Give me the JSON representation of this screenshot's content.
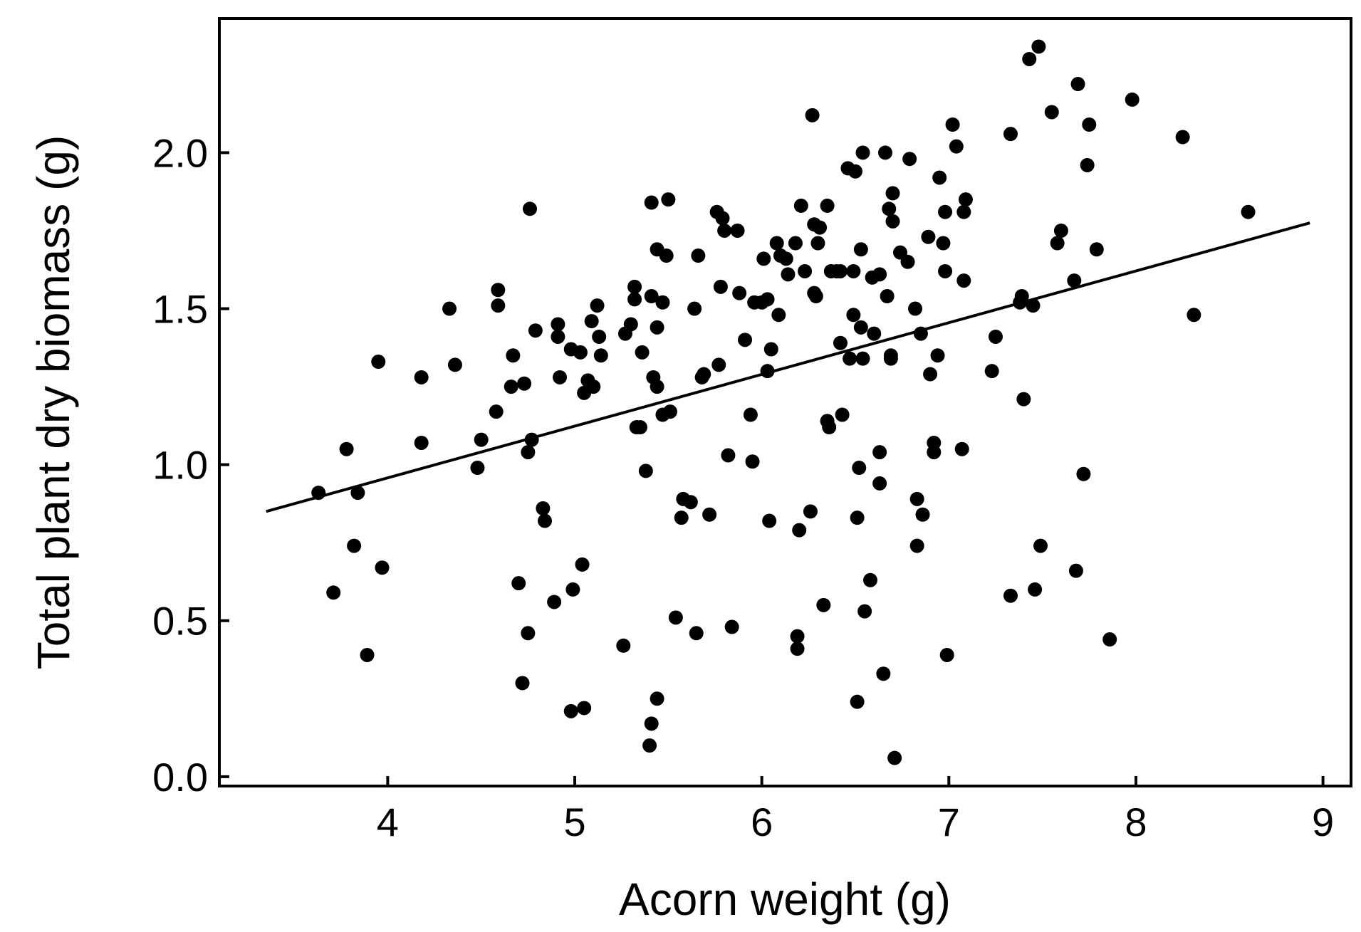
{
  "chart_data": {
    "type": "scatter",
    "title": "",
    "xlabel": "Acorn weight (g)",
    "ylabel": "Total plant dry biomass (g)",
    "xlim": [
      3.1,
      9.15
    ],
    "ylim": [
      -0.03,
      2.43
    ],
    "x_ticks": [
      4,
      5,
      6,
      7,
      8,
      9
    ],
    "x_tick_labels": [
      "4",
      "5",
      "6",
      "7",
      "8",
      "9"
    ],
    "y_ticks": [
      0.0,
      0.5,
      1.0,
      1.5,
      2.0
    ],
    "y_tick_labels": [
      "0.0",
      "0.5",
      "1.0",
      "1.5",
      "2.0"
    ],
    "grid": false,
    "legend": "none",
    "marker_color": "#000000",
    "points": [
      [
        3.63,
        0.91
      ],
      [
        3.71,
        0.59
      ],
      [
        3.78,
        1.05
      ],
      [
        3.82,
        0.74
      ],
      [
        3.84,
        0.91
      ],
      [
        3.89,
        0.39
      ],
      [
        3.95,
        1.33
      ],
      [
        3.97,
        0.67
      ],
      [
        4.18,
        1.28
      ],
      [
        4.18,
        1.07
      ],
      [
        4.33,
        1.5
      ],
      [
        4.36,
        1.32
      ],
      [
        4.48,
        0.99
      ],
      [
        4.5,
        1.08
      ],
      [
        4.58,
        1.17
      ],
      [
        4.59,
        1.51
      ],
      [
        4.59,
        1.56
      ],
      [
        4.66,
        1.25
      ],
      [
        4.67,
        1.35
      ],
      [
        4.7,
        0.62
      ],
      [
        4.72,
        0.3
      ],
      [
        4.73,
        1.26
      ],
      [
        4.75,
        1.04
      ],
      [
        4.75,
        0.46
      ],
      [
        4.76,
        1.82
      ],
      [
        4.77,
        1.08
      ],
      [
        4.79,
        1.43
      ],
      [
        4.83,
        0.86
      ],
      [
        4.84,
        0.82
      ],
      [
        4.89,
        0.56
      ],
      [
        4.91,
        1.41
      ],
      [
        4.91,
        1.45
      ],
      [
        4.92,
        1.28
      ],
      [
        4.98,
        1.37
      ],
      [
        4.98,
        0.21
      ],
      [
        4.99,
        0.6
      ],
      [
        5.03,
        1.36
      ],
      [
        5.04,
        0.68
      ],
      [
        5.05,
        1.23
      ],
      [
        5.05,
        0.22
      ],
      [
        5.07,
        1.27
      ],
      [
        5.09,
        1.46
      ],
      [
        5.1,
        1.25
      ],
      [
        5.12,
        1.51
      ],
      [
        5.13,
        1.41
      ],
      [
        5.14,
        1.35
      ],
      [
        5.27,
        1.42
      ],
      [
        5.26,
        0.42
      ],
      [
        5.3,
        1.45
      ],
      [
        5.32,
        1.53
      ],
      [
        5.32,
        1.57
      ],
      [
        5.33,
        1.12
      ],
      [
        5.35,
        1.12
      ],
      [
        5.36,
        1.36
      ],
      [
        5.38,
        0.98
      ],
      [
        5.41,
        1.84
      ],
      [
        5.41,
        1.54
      ],
      [
        5.41,
        0.17
      ],
      [
        5.4,
        0.1
      ],
      [
        5.42,
        1.28
      ],
      [
        5.44,
        1.69
      ],
      [
        5.44,
        1.44
      ],
      [
        5.44,
        1.25
      ],
      [
        5.44,
        0.25
      ],
      [
        5.47,
        1.16
      ],
      [
        5.47,
        1.52
      ],
      [
        5.49,
        1.67
      ],
      [
        5.5,
        1.85
      ],
      [
        5.51,
        1.17
      ],
      [
        5.54,
        0.51
      ],
      [
        5.57,
        0.83
      ],
      [
        5.58,
        0.89
      ],
      [
        5.62,
        0.88
      ],
      [
        5.64,
        1.5
      ],
      [
        5.65,
        0.46
      ],
      [
        5.66,
        1.67
      ],
      [
        5.68,
        1.28
      ],
      [
        5.69,
        1.29
      ],
      [
        5.72,
        0.84
      ],
      [
        5.76,
        1.81
      ],
      [
        5.77,
        1.32
      ],
      [
        5.78,
        1.57
      ],
      [
        5.79,
        1.79
      ],
      [
        5.8,
        1.75
      ],
      [
        5.82,
        1.03
      ],
      [
        5.84,
        0.48
      ],
      [
        5.87,
        1.75
      ],
      [
        5.88,
        1.55
      ],
      [
        5.91,
        1.4
      ],
      [
        5.94,
        1.16
      ],
      [
        5.95,
        1.01
      ],
      [
        5.96,
        1.52
      ],
      [
        6.0,
        1.52
      ],
      [
        6.01,
        1.66
      ],
      [
        6.03,
        1.53
      ],
      [
        6.03,
        1.3
      ],
      [
        6.04,
        0.82
      ],
      [
        6.05,
        1.37
      ],
      [
        6.08,
        1.71
      ],
      [
        6.09,
        1.48
      ],
      [
        6.1,
        1.67
      ],
      [
        6.13,
        1.66
      ],
      [
        6.14,
        1.61
      ],
      [
        6.18,
        1.71
      ],
      [
        6.19,
        0.45
      ],
      [
        6.19,
        0.41
      ],
      [
        6.2,
        0.79
      ],
      [
        6.21,
        1.83
      ],
      [
        6.23,
        1.62
      ],
      [
        6.26,
        0.85
      ],
      [
        6.27,
        2.12
      ],
      [
        6.28,
        1.77
      ],
      [
        6.28,
        1.55
      ],
      [
        6.29,
        1.54
      ],
      [
        6.3,
        1.71
      ],
      [
        6.31,
        1.76
      ],
      [
        6.33,
        0.55
      ],
      [
        6.35,
        1.83
      ],
      [
        6.35,
        1.14
      ],
      [
        6.36,
        1.12
      ],
      [
        6.37,
        1.62
      ],
      [
        6.4,
        1.62
      ],
      [
        6.42,
        1.62
      ],
      [
        6.42,
        1.39
      ],
      [
        6.43,
        1.16
      ],
      [
        6.46,
        1.95
      ],
      [
        6.47,
        1.34
      ],
      [
        6.49,
        1.62
      ],
      [
        6.49,
        1.48
      ],
      [
        6.5,
        1.94
      ],
      [
        6.51,
        0.83
      ],
      [
        6.52,
        0.99
      ],
      [
        6.51,
        0.24
      ],
      [
        6.53,
        1.69
      ],
      [
        6.53,
        1.44
      ],
      [
        6.54,
        2.0
      ],
      [
        6.54,
        1.34
      ],
      [
        6.55,
        0.53
      ],
      [
        6.58,
        0.63
      ],
      [
        6.59,
        1.6
      ],
      [
        6.6,
        1.42
      ],
      [
        6.63,
        1.61
      ],
      [
        6.63,
        1.04
      ],
      [
        6.63,
        0.94
      ],
      [
        6.65,
        0.33
      ],
      [
        6.66,
        2.0
      ],
      [
        6.67,
        1.54
      ],
      [
        6.68,
        1.82
      ],
      [
        6.69,
        1.35
      ],
      [
        6.69,
        1.34
      ],
      [
        6.7,
        1.87
      ],
      [
        6.7,
        1.78
      ],
      [
        6.71,
        0.06
      ],
      [
        6.74,
        1.68
      ],
      [
        6.78,
        1.65
      ],
      [
        6.79,
        1.98
      ],
      [
        6.82,
        1.5
      ],
      [
        6.83,
        0.89
      ],
      [
        6.83,
        0.74
      ],
      [
        6.85,
        1.42
      ],
      [
        6.86,
        0.84
      ],
      [
        6.89,
        1.73
      ],
      [
        6.9,
        1.29
      ],
      [
        6.92,
        1.07
      ],
      [
        6.92,
        1.04
      ],
      [
        6.94,
        1.35
      ],
      [
        6.95,
        1.92
      ],
      [
        6.97,
        1.71
      ],
      [
        6.98,
        1.81
      ],
      [
        6.98,
        1.62
      ],
      [
        6.99,
        0.39
      ],
      [
        7.02,
        2.09
      ],
      [
        7.04,
        2.02
      ],
      [
        7.07,
        1.05
      ],
      [
        7.08,
        1.81
      ],
      [
        7.08,
        1.59
      ],
      [
        7.09,
        1.85
      ],
      [
        7.23,
        1.3
      ],
      [
        7.25,
        1.41
      ],
      [
        7.33,
        2.06
      ],
      [
        7.33,
        0.58
      ],
      [
        7.38,
        1.52
      ],
      [
        7.39,
        1.54
      ],
      [
        7.4,
        1.21
      ],
      [
        7.43,
        2.3
      ],
      [
        7.45,
        1.51
      ],
      [
        7.46,
        0.6
      ],
      [
        7.48,
        2.34
      ],
      [
        7.49,
        0.74
      ],
      [
        7.55,
        2.13
      ],
      [
        7.58,
        1.71
      ],
      [
        7.6,
        1.75
      ],
      [
        7.67,
        1.59
      ],
      [
        7.68,
        0.66
      ],
      [
        7.69,
        2.22
      ],
      [
        7.72,
        0.97
      ],
      [
        7.74,
        1.96
      ],
      [
        7.75,
        2.09
      ],
      [
        7.79,
        1.69
      ],
      [
        7.86,
        0.44
      ],
      [
        7.98,
        2.17
      ],
      [
        8.25,
        2.05
      ],
      [
        8.31,
        1.48
      ],
      [
        8.6,
        1.81
      ]
    ],
    "trend_line": {
      "x": [
        3.35,
        8.93
      ],
      "y": [
        0.85,
        1.775
      ]
    }
  }
}
